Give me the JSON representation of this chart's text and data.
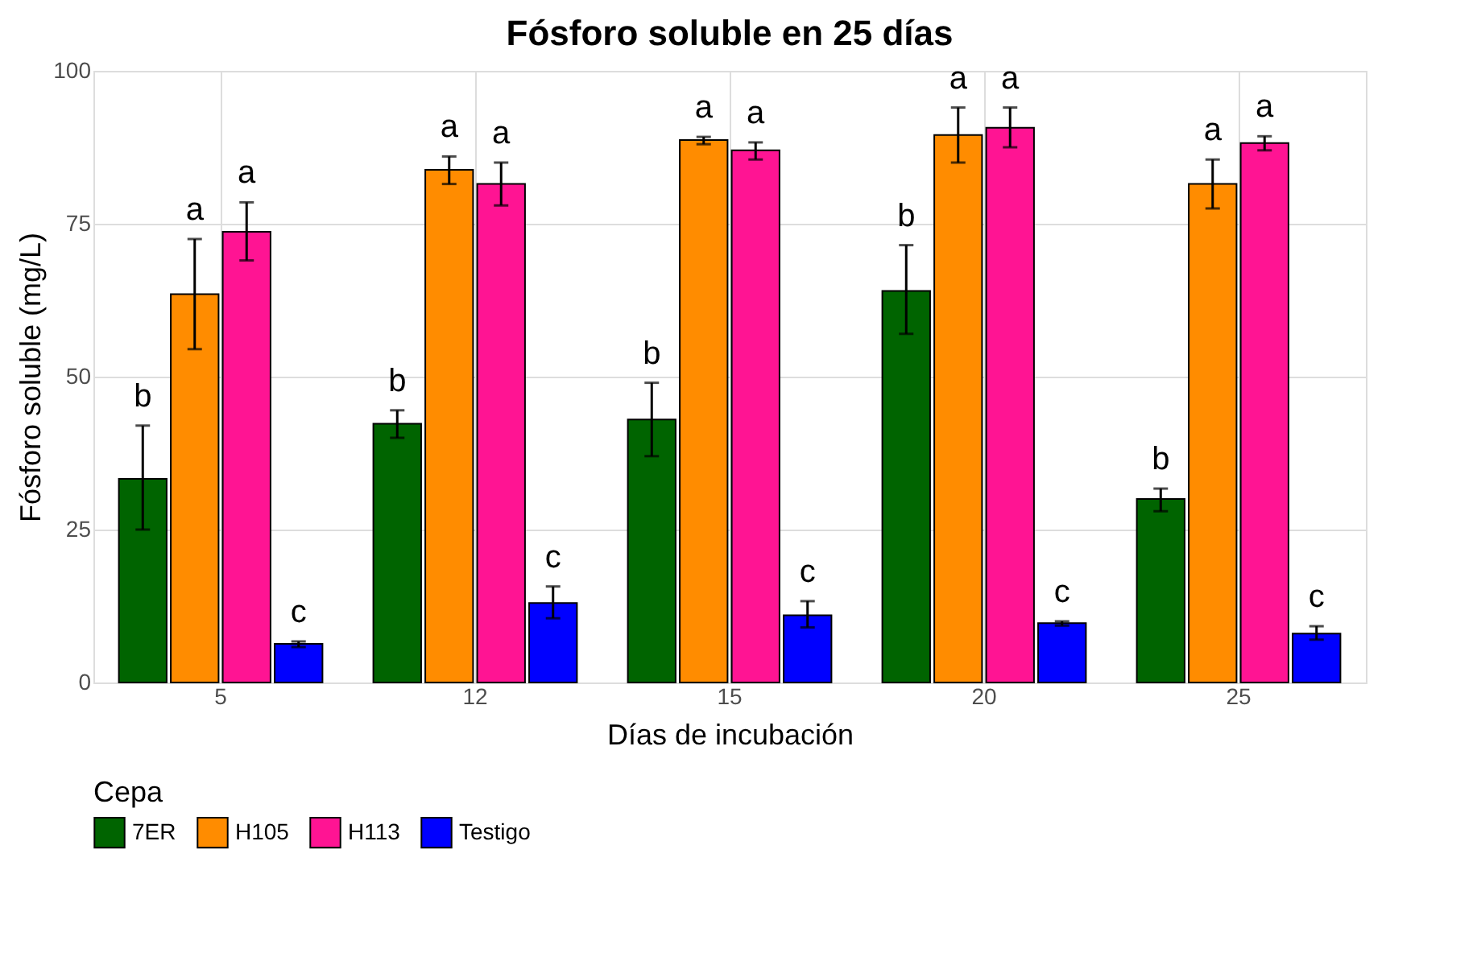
{
  "chart_data": {
    "type": "bar",
    "title": "Fósforo soluble en 25 días",
    "xlabel": "Días de incubación",
    "ylabel": "Fósforo soluble (mg/L)",
    "legend_title": "Cepa",
    "legend": "bottom",
    "grid": true,
    "categories": [
      "5",
      "12",
      "15",
      "20",
      "25"
    ],
    "ylim": [
      0,
      100
    ],
    "yticks": [
      0,
      25,
      50,
      75,
      100
    ],
    "series": [
      {
        "name": "7ER",
        "color": "#006400",
        "values": [
          33.3,
          42.3,
          43,
          64,
          30
        ],
        "errors": [
          [
            25,
            42
          ],
          [
            40,
            44.5
          ],
          [
            37,
            49
          ],
          [
            57,
            71.5
          ],
          [
            28,
            31.7
          ]
        ],
        "value_labels": [
          "b",
          "b",
          "b",
          "b",
          "b"
        ]
      },
      {
        "name": "H105",
        "color": "#ff8c00",
        "values": [
          63.5,
          83.8,
          88.7,
          89.5,
          81.5
        ],
        "errors": [
          [
            54.5,
            72.5
          ],
          [
            81.5,
            86
          ],
          [
            88,
            89.2
          ],
          [
            85,
            94
          ],
          [
            77.5,
            85.5
          ]
        ],
        "value_labels": [
          "a",
          "a",
          "a",
          "a",
          "a"
        ]
      },
      {
        "name": "H113",
        "color": "#ff1493",
        "values": [
          73.7,
          81.5,
          87,
          90.7,
          88.2
        ],
        "errors": [
          [
            69,
            78.5
          ],
          [
            78,
            85
          ],
          [
            85.5,
            88.3
          ],
          [
            87.5,
            94
          ],
          [
            87,
            89.3
          ]
        ],
        "value_labels": [
          "a",
          "a",
          "a",
          "a",
          "a"
        ]
      },
      {
        "name": "Testigo",
        "color": "#0000ff",
        "values": [
          6.3,
          13,
          11,
          9.7,
          8
        ],
        "errors": [
          [
            5.8,
            6.7
          ],
          [
            10.5,
            15.7
          ],
          [
            9,
            13.3
          ],
          [
            9.3,
            10
          ],
          [
            7,
            9.2
          ]
        ],
        "value_labels": [
          "c",
          "c",
          "c",
          "c",
          "c"
        ]
      }
    ]
  }
}
